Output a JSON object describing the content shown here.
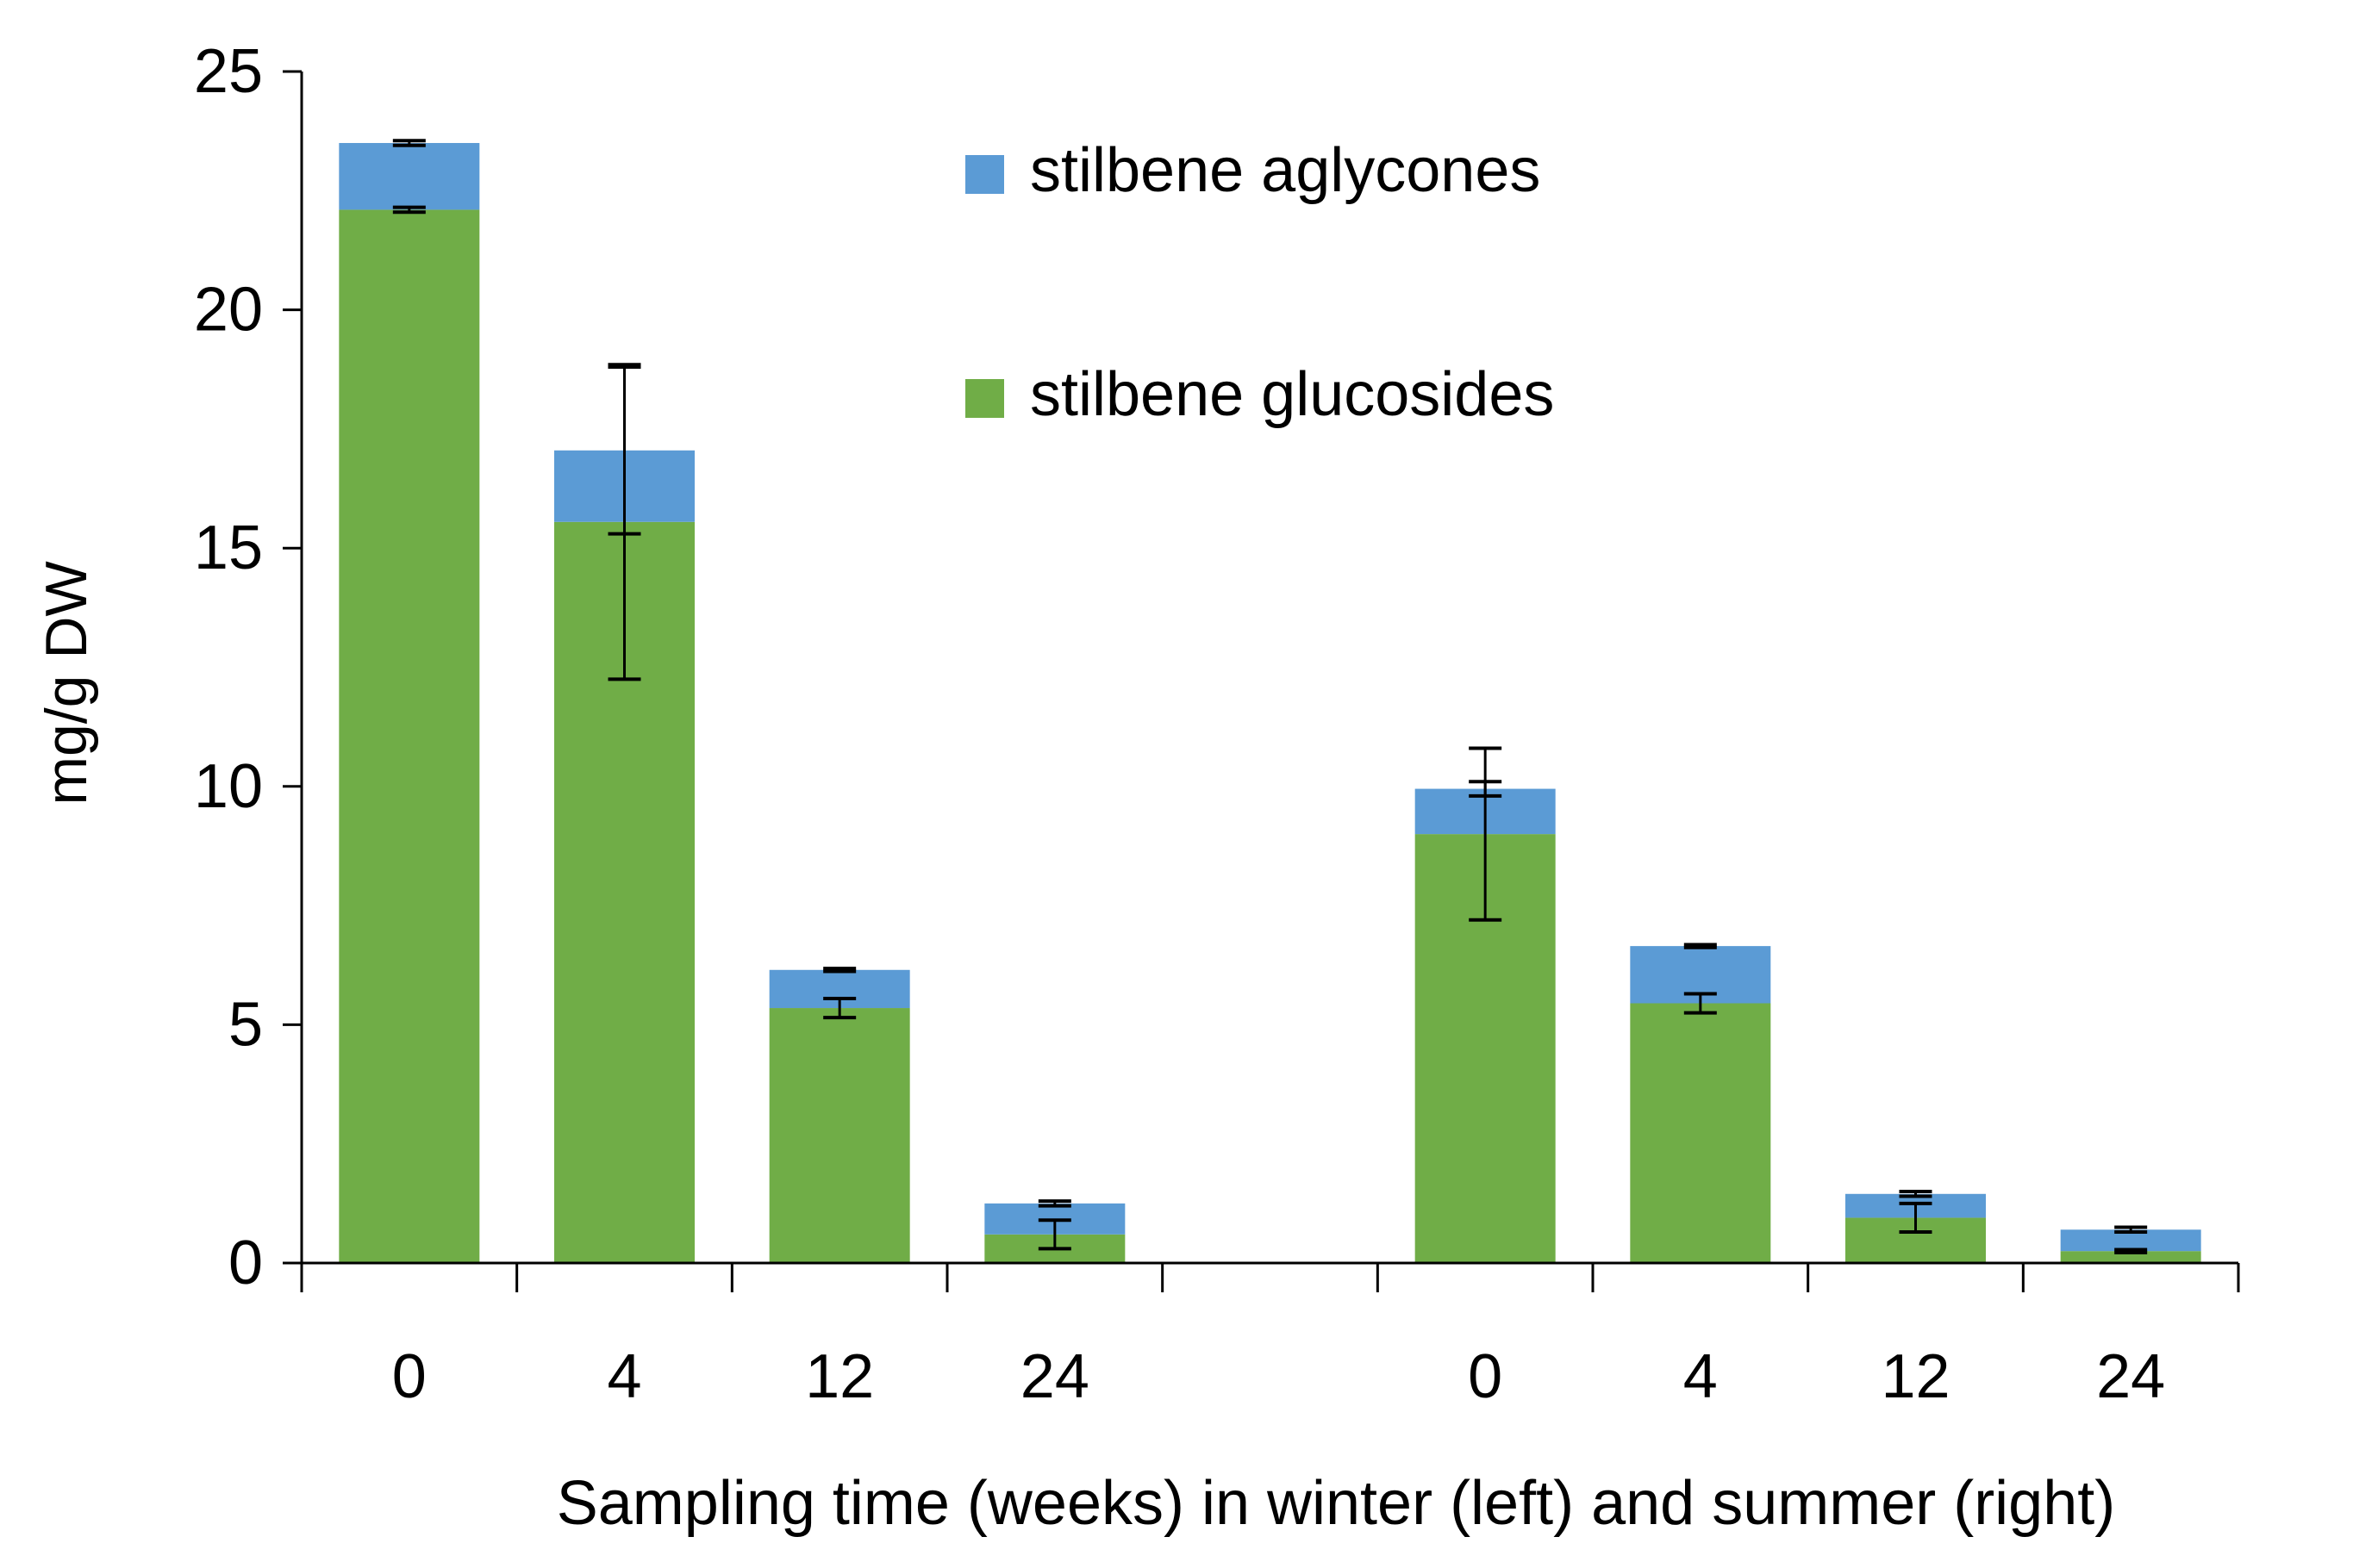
{
  "chart_data": {
    "type": "bar",
    "stacked": true,
    "xlabel": "Sampling time (weeks) in winter (left) and summer (right)",
    "ylabel": "mg/g DW",
    "ylim": [
      0,
      25
    ],
    "yticks": [
      0,
      5,
      10,
      15,
      20,
      25
    ],
    "grid": false,
    "legend_position": "top-center",
    "groups": [
      {
        "name": "winter",
        "categories": [
          "0",
          "4",
          "12",
          "24"
        ]
      },
      {
        "name": "summer",
        "categories": [
          "0",
          "4",
          "12",
          "24"
        ]
      }
    ],
    "categories": [
      "0",
      "4",
      "12",
      "24",
      "0",
      "4",
      "12",
      "24"
    ],
    "series": [
      {
        "name": "stilbene glucosides",
        "color": "#70ad47",
        "values": [
          22.1,
          15.55,
          5.35,
          0.6,
          9.0,
          5.45,
          0.95,
          0.25
        ],
        "error_center": [
          22.1,
          15.55,
          5.35,
          0.6,
          9.0,
          5.45,
          0.95,
          0.25
        ],
        "errors": [
          0.05,
          3.3,
          0.2,
          0.3,
          1.8,
          0.2,
          0.3,
          0.03
        ]
      },
      {
        "name": "stilbene aglycones",
        "color": "#5b9bd5",
        "values": [
          1.4,
          1.5,
          0.8,
          0.65,
          0.95,
          1.2,
          0.5,
          0.45
        ],
        "error_center": [
          23.5,
          17.05,
          6.15,
          1.25,
          9.95,
          6.65,
          1.45,
          0.7
        ],
        "errors": [
          0.05,
          1.75,
          0.03,
          0.05,
          0.15,
          0.03,
          0.05,
          0.05
        ]
      }
    ]
  }
}
